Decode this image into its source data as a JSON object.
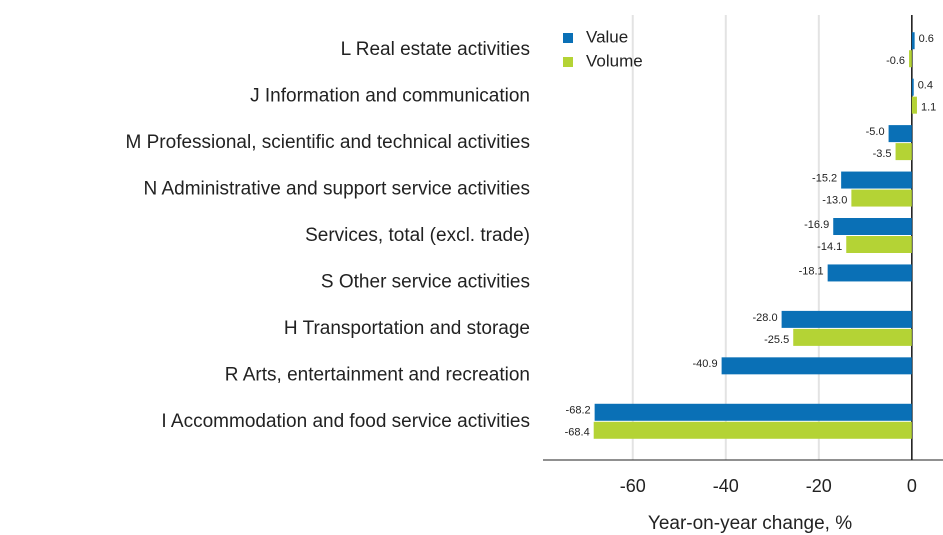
{
  "chart_data": {
    "type": "bar",
    "orientation": "horizontal",
    "categories": [
      "L Real estate activities",
      "J Information and communication",
      "M Professional, scientific and technical activities",
      "N Administrative and support service activities",
      "Services, total (excl. trade)",
      "S Other service activities",
      "H Transportation and storage",
      "R Arts, entertainment and recreation",
      "I Accommodation and food service activities"
    ],
    "series": [
      {
        "name": "Value",
        "color": "#0a70b6",
        "values": [
          0.6,
          0.4,
          -5.0,
          -15.2,
          -16.9,
          -18.1,
          -28.0,
          -40.9,
          -68.2
        ],
        "value_labels": [
          "0.6",
          "0.4",
          "-5.0",
          "-15.2",
          "-16.9",
          "-18.1",
          "-28.0",
          "-40.9",
          "-68.2"
        ]
      },
      {
        "name": "Volume",
        "color": "#b4d335",
        "values": [
          -0.6,
          1.1,
          -3.5,
          -13.0,
          -14.1,
          null,
          -25.5,
          null,
          -68.4
        ],
        "value_labels": [
          "-0.6",
          "1.1",
          "-3.5",
          "-13.0",
          "-14.1",
          null,
          "-25.5",
          null,
          "-68.4"
        ]
      }
    ],
    "xlabel": "Year-on-year change, %",
    "xlim": [
      -79.3,
      6.7
    ],
    "xticks": [
      -60,
      -40,
      -20,
      0
    ],
    "grid": true,
    "legend": "top-left"
  }
}
